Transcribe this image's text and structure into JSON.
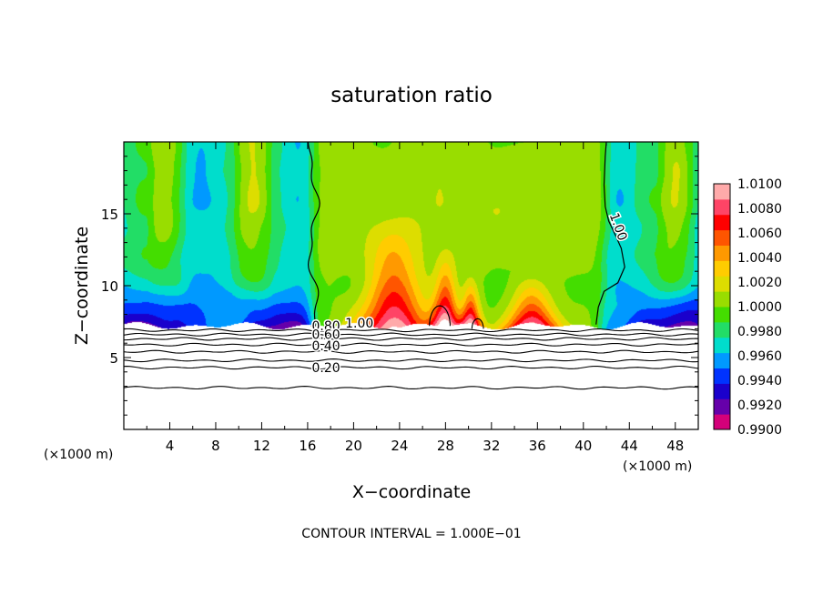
{
  "chart_data": {
    "type": "heatmap",
    "title": "saturation ratio",
    "xlabel": "X−coordinate",
    "ylabel": "Z−coordinate",
    "x_unit_left": "(×1000 m)",
    "x_unit_right": "(×1000 m)",
    "footer": "CONTOUR INTERVAL = 1.000E−01",
    "xlim": [
      0,
      50
    ],
    "ylim": [
      0,
      20
    ],
    "xticks": [
      4,
      8,
      12,
      16,
      20,
      24,
      28,
      32,
      36,
      40,
      44,
      48
    ],
    "xtick_labels": [
      "4",
      "8",
      "12",
      "16",
      "20",
      "24",
      "28",
      "32",
      "36",
      "40",
      "44",
      "48"
    ],
    "yticks": [
      5,
      10,
      15
    ],
    "ytick_labels": [
      "5",
      "10",
      "15"
    ],
    "colorbar": {
      "min": 0.99,
      "max": 1.01,
      "levels": [
        "1.0100",
        "1.0080",
        "1.0060",
        "1.0040",
        "1.0020",
        "1.0000",
        "0.9980",
        "0.9960",
        "0.9940",
        "0.9920",
        "0.9900"
      ],
      "colors": [
        "#d4007a",
        "#6600aa",
        "#1a00cc",
        "#0033ff",
        "#0099ff",
        "#00ddcc",
        "#22dd66",
        "#44dd00",
        "#99dd00",
        "#dddd00",
        "#ffcc00",
        "#ff9900",
        "#ff5500",
        "#ff0000",
        "#ff4466",
        "#ffaaaa"
      ]
    },
    "contour_labels": [
      {
        "text": "1.00",
        "x": 42.7,
        "y": 14.0,
        "angle": 70
      },
      {
        "text": "1.00",
        "x": 20.5,
        "y": 7.1,
        "angle": 0
      },
      {
        "text": "0.80",
        "x": 17.6,
        "y": 6.9,
        "angle": 0
      },
      {
        "text": "0.60",
        "x": 17.6,
        "y": 6.3,
        "angle": 0
      },
      {
        "text": "0.40",
        "x": 17.6,
        "y": 5.5,
        "angle": 0
      },
      {
        "text": "0.20",
        "x": 17.6,
        "y": 4.0,
        "angle": 0
      }
    ],
    "field_features": {
      "sub_cloud_base_height": 7.2,
      "green_region_x": [
        16.5,
        41.5
      ],
      "warm_plumes": [
        {
          "x": 23.5,
          "top": 15,
          "width": 3.0
        },
        {
          "x": 28.0,
          "top": 13,
          "width": 1.3
        },
        {
          "x": 30.2,
          "top": 11,
          "width": 1.0
        },
        {
          "x": 35.5,
          "top": 11,
          "width": 2.4
        }
      ],
      "cold_edges": [
        {
          "x": 3.0,
          "y": 8.5
        },
        {
          "x": 10.5,
          "y": 8.8
        },
        {
          "x": 48.0,
          "y": 8.5
        }
      ]
    }
  }
}
